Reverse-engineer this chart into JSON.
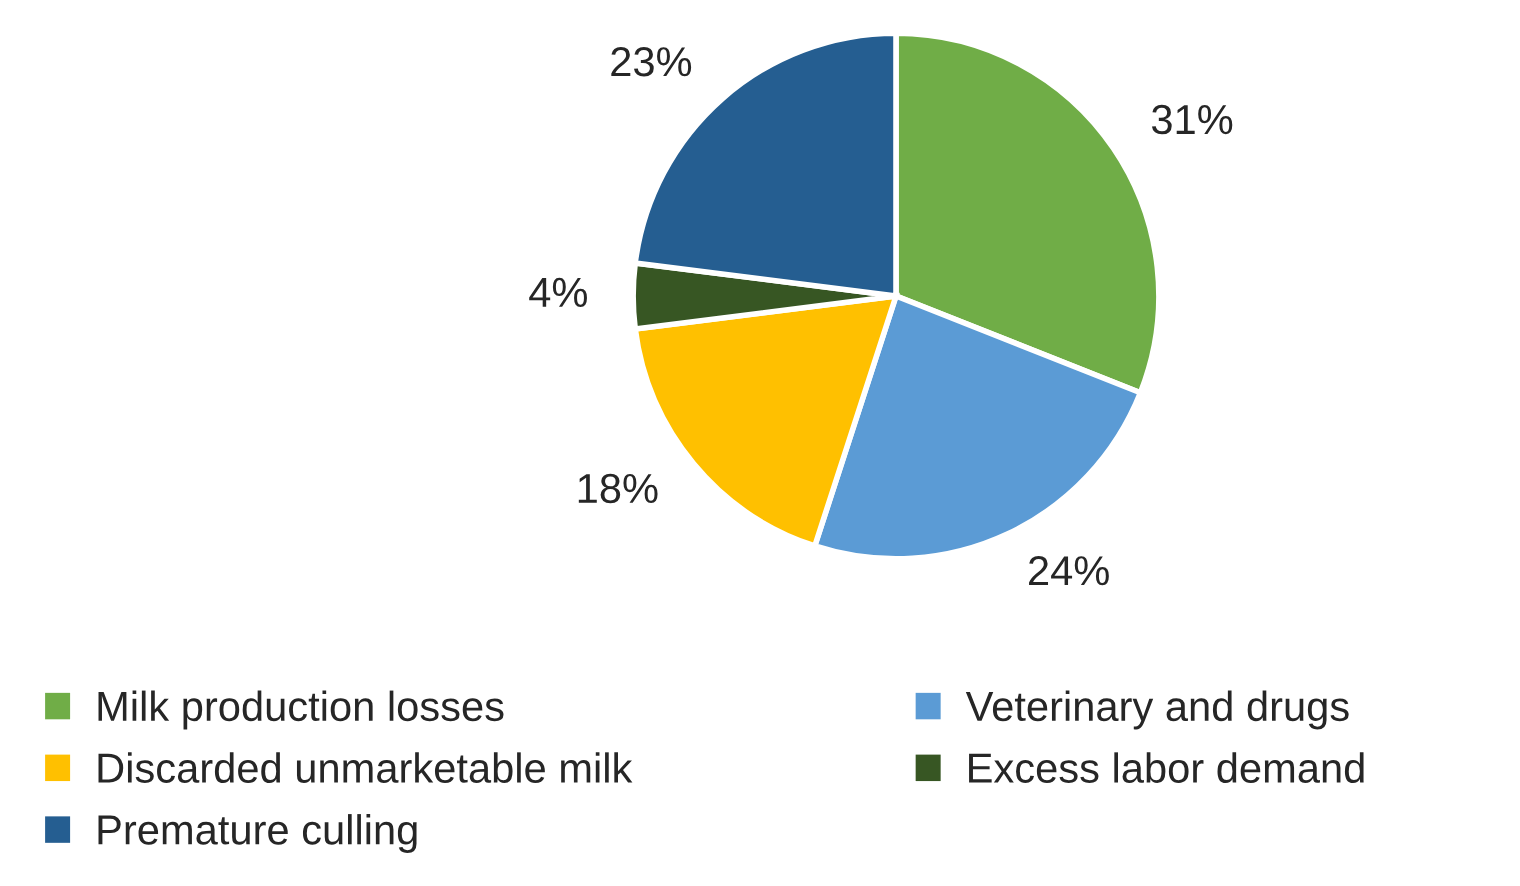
{
  "chart_data": {
    "type": "pie",
    "categories": [
      "Milk production losses",
      "Veterinary and drugs",
      "Discarded unmarketable milk",
      "Excess labor demand",
      "Premature culling"
    ],
    "values": [
      31,
      24,
      18,
      4,
      23
    ],
    "colors": [
      "#70ad47",
      "#5b9bd5",
      "#ffc000",
      "#375623",
      "#255e91"
    ],
    "value_labels": [
      "31%",
      "24%",
      "18%",
      "4%",
      "23%"
    ],
    "legend": "bottom"
  }
}
